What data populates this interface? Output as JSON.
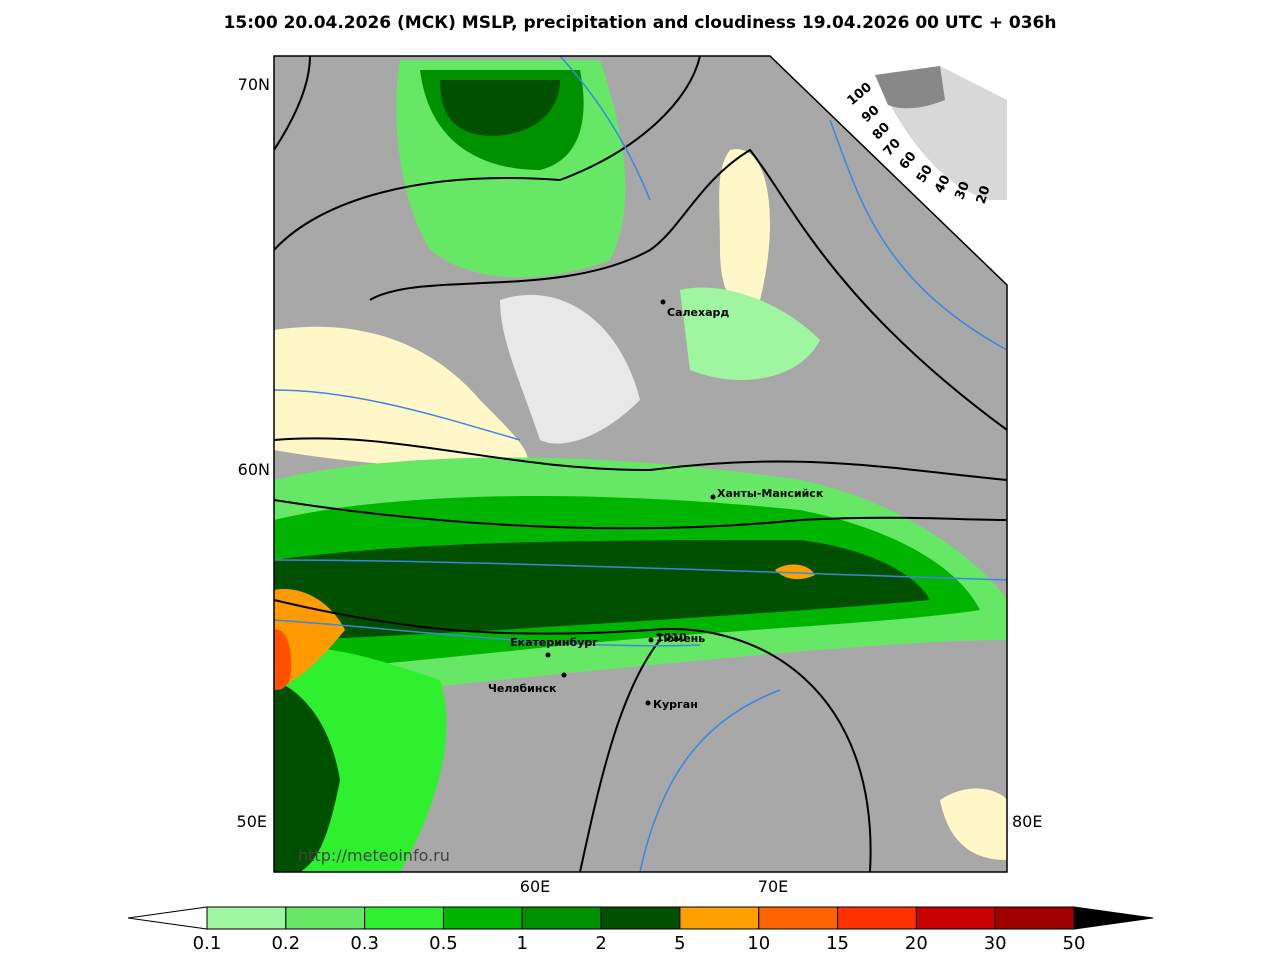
{
  "title": "15:00 20.04.2026 (МСК) MSLP, precipitation and cloudiness 19.04.2026 00 UTC + 036h",
  "map": {
    "lat_labels": [
      "70N",
      "60N"
    ],
    "lon_labels": [
      "50E",
      "60E",
      "70E",
      "80E"
    ],
    "cities": [
      "Салехард",
      "Ханты-Мансийск",
      "Екатеринбург",
      "Тюмень",
      "Челябинск",
      "Курган"
    ],
    "isobar_label": "1010",
    "watermark": "http://meteoinfo.ru",
    "cloud_scale": [
      "100",
      "90",
      "80",
      "70",
      "60",
      "50",
      "40",
      "30",
      "20"
    ]
  },
  "colorbar": {
    "labels": [
      "0.1",
      "0.2",
      "0.3",
      "0.5",
      "1",
      "2",
      "5",
      "10",
      "15",
      "20",
      "30",
      "50"
    ],
    "colors": [
      "#a0f5a0",
      "#66e866",
      "#2ef02e",
      "#00b400",
      "#009100",
      "#005000",
      "#ffa000",
      "#ff6400",
      "#ff3200",
      "#c80000",
      "#a00000"
    ]
  }
}
